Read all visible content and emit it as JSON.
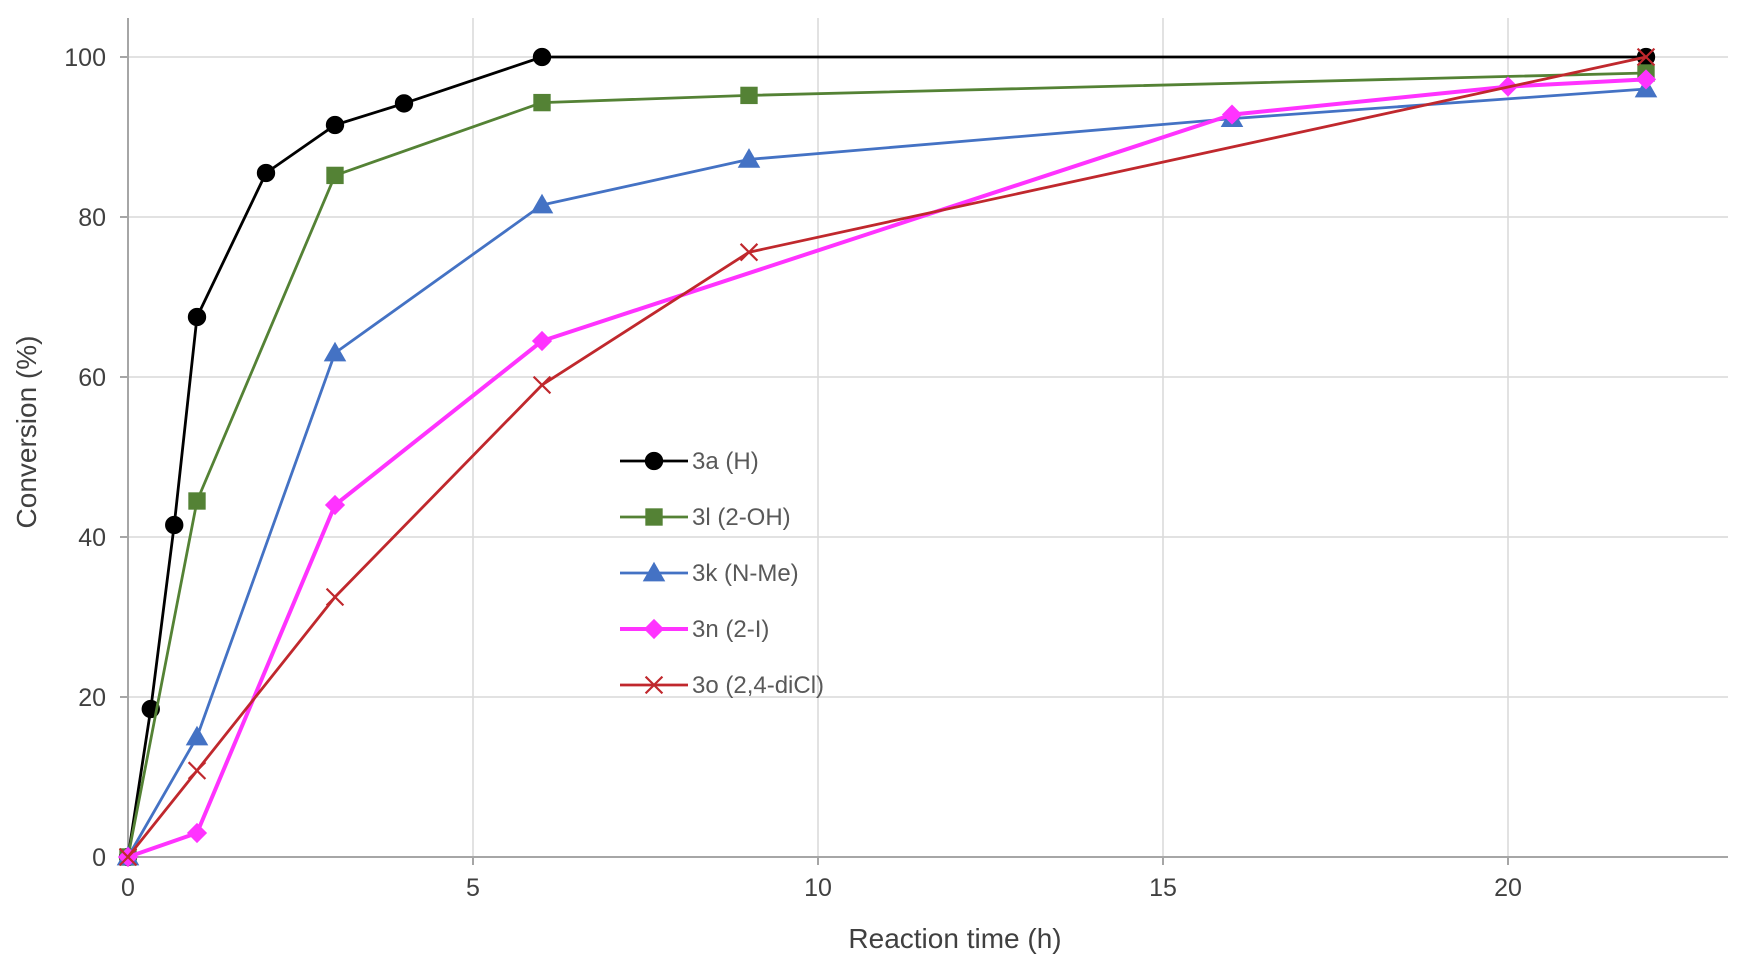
{
  "chart_data": {
    "type": "line",
    "title": "",
    "xlabel": "Reaction time (h)",
    "ylabel": "Conversion (%)",
    "xlim": [
      0,
      23.2
    ],
    "ylim": [
      0,
      105
    ],
    "x_ticks": [
      0,
      5,
      10,
      15,
      20
    ],
    "y_ticks": [
      0,
      20,
      40,
      60,
      80,
      100
    ],
    "x_tick_labels": [
      "0",
      "5",
      "10",
      "15",
      "20"
    ],
    "y_tick_labels": [
      "0",
      "20",
      "40",
      "60",
      "80",
      "100"
    ],
    "grid": true,
    "legend_position": "center",
    "series": [
      {
        "name": "3a (H)",
        "color": "#000000",
        "marker": "circle",
        "x": [
          0,
          0.33,
          0.67,
          1,
          2,
          3,
          4,
          6,
          22
        ],
        "y": [
          0,
          18.5,
          41.5,
          67.5,
          85.5,
          91.5,
          94.2,
          100,
          100
        ]
      },
      {
        "name": "3l (2-OH)",
        "color": "#548235",
        "marker": "square",
        "x": [
          0,
          1,
          3,
          6,
          9,
          22
        ],
        "y": [
          0,
          44.5,
          85.2,
          94.3,
          95.2,
          98
        ]
      },
      {
        "name": "3k (N-Me)",
        "color": "#4472C4",
        "marker": "triangle",
        "x": [
          0,
          1,
          3,
          6,
          9,
          16,
          22
        ],
        "y": [
          0,
          15,
          63,
          81.5,
          87.2,
          92.3,
          96
        ]
      },
      {
        "name": "3n (2-I)",
        "color": "#FF33FF",
        "marker": "diamond",
        "x": [
          0,
          1,
          3,
          6,
          16,
          20,
          22
        ],
        "y": [
          0,
          3,
          44,
          64.5,
          92.8,
          96.3,
          97.2
        ]
      },
      {
        "name": "3o (2,4-diCl)",
        "color": "#C0282D",
        "marker": "x",
        "x": [
          0,
          1,
          3,
          6,
          9,
          22
        ],
        "y": [
          0,
          10.8,
          32.5,
          59,
          75.6,
          100
        ]
      }
    ]
  }
}
